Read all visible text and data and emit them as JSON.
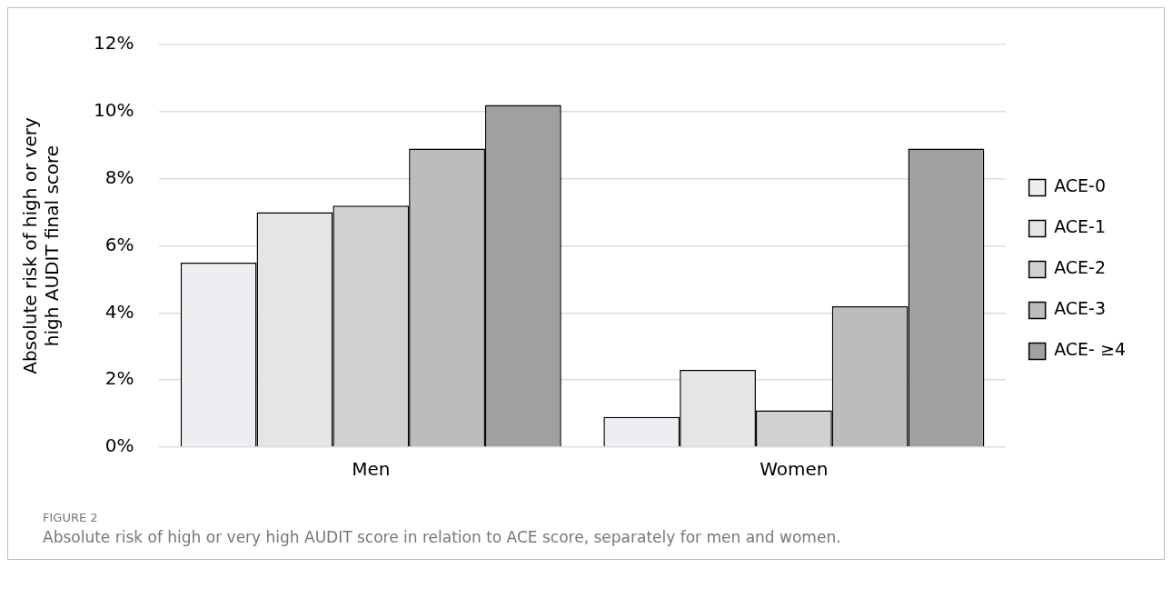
{
  "chart_data": {
    "type": "bar",
    "ylabel": "Absolute risk of high or very high AUDIT final score",
    "categories": [
      "Men",
      "Women"
    ],
    "series": [
      {
        "name": "ACE-0",
        "color": "#eceef1",
        "values": [
          5.5,
          0.9
        ]
      },
      {
        "name": "ACE-1",
        "color": "#e4e5e4",
        "values": [
          7.0,
          2.3
        ]
      },
      {
        "name": "ACE-2",
        "color": "#d1d1d1",
        "values": [
          7.2,
          1.1
        ]
      },
      {
        "name": "ACE-3",
        "color": "#bcbcbc",
        "values": [
          8.9,
          4.2
        ]
      },
      {
        "name": "ACE- ≥4",
        "color": "#a0a0a0",
        "values": [
          10.2,
          8.9
        ]
      }
    ],
    "ylim": [
      0,
      12
    ],
    "yticks": [
      {
        "value": 0,
        "label": "0%"
      },
      {
        "value": 2,
        "label": "2%"
      },
      {
        "value": 4,
        "label": "4%"
      },
      {
        "value": 6,
        "label": "6%"
      },
      {
        "value": 8,
        "label": "8%"
      },
      {
        "value": 10,
        "label": "10%"
      },
      {
        "value": 12,
        "label": "12%"
      }
    ],
    "grid": "y",
    "legend": "right",
    "annotations": [
      "FIGURE 2",
      "Absolute risk of high or very high AUDIT score in relation to ACE score, separately for men and women."
    ]
  }
}
